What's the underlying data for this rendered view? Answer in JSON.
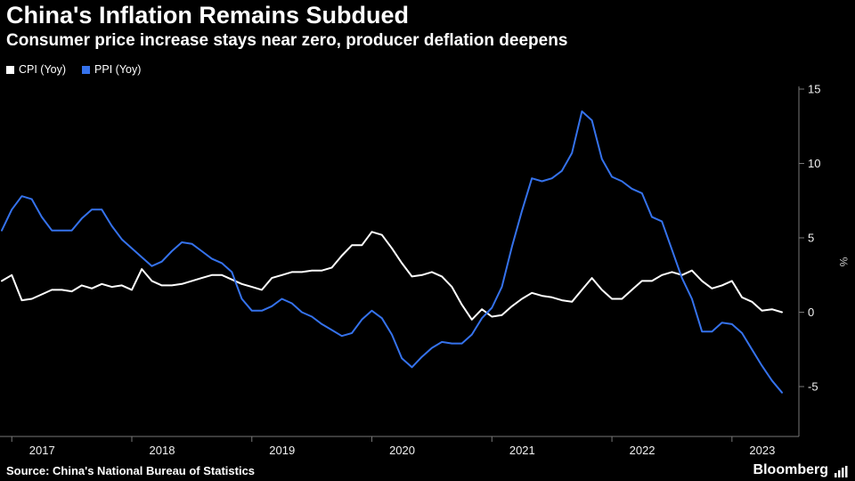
{
  "header": {
    "title": "China's Inflation Remains Subdued",
    "subtitle": "Consumer price increase stays near zero, producer deflation deepens"
  },
  "legend": [
    {
      "label": "CPI (Yoy)",
      "color": "#ffffff"
    },
    {
      "label": "PPI (Yoy)",
      "color": "#3572ec"
    }
  ],
  "footer": {
    "source": "Source: China's National Bureau of Statistics",
    "brand": "Bloomberg"
  },
  "colors": {
    "background": "#000000",
    "axis": "#787878",
    "tick_text": "#f2f2f2",
    "unit_text": "#c8c8c8",
    "cpi_line": "#ffffff",
    "ppi_line": "#3572ec"
  },
  "chart_data": {
    "type": "line",
    "title": "China's Inflation Remains Subdued",
    "subtitle": "Consumer price increase stays near zero, producer deflation deepens",
    "x_unit": "month",
    "x_start": "2016-12",
    "x_end": "2023-06",
    "ylabel": "%",
    "ylim": [
      -8,
      15.5
    ],
    "y_ticks": [
      15,
      10,
      5,
      0,
      -5
    ],
    "x_tick_years": [
      "2017",
      "2018",
      "2019",
      "2020",
      "2021",
      "2022",
      "2023"
    ],
    "grid": false,
    "legend_position": "top-left",
    "series": [
      {
        "name": "CPI (Yoy)",
        "color": "#ffffff",
        "values": [
          2.1,
          2.5,
          0.8,
          0.9,
          1.2,
          1.5,
          1.5,
          1.4,
          1.8,
          1.6,
          1.9,
          1.7,
          1.8,
          1.5,
          2.9,
          2.1,
          1.8,
          1.8,
          1.9,
          2.1,
          2.3,
          2.5,
          2.5,
          2.2,
          1.9,
          1.7,
          1.5,
          2.3,
          2.5,
          2.7,
          2.7,
          2.8,
          2.8,
          3.0,
          3.8,
          4.5,
          4.5,
          5.4,
          5.2,
          4.3,
          3.3,
          2.4,
          2.5,
          2.7,
          2.4,
          1.7,
          0.5,
          -0.5,
          0.2,
          -0.3,
          -0.2,
          0.4,
          0.9,
          1.3,
          1.1,
          1.0,
          0.8,
          0.7,
          1.5,
          2.3,
          1.5,
          0.9,
          0.9,
          1.5,
          2.1,
          2.1,
          2.5,
          2.7,
          2.5,
          2.8,
          2.1,
          1.6,
          1.8,
          2.1,
          1.0,
          0.7,
          0.1,
          0.2,
          0.0
        ]
      },
      {
        "name": "PPI (Yoy)",
        "color": "#3572ec",
        "values": [
          5.5,
          6.9,
          7.8,
          7.6,
          6.4,
          5.5,
          5.5,
          5.5,
          6.3,
          6.9,
          6.9,
          5.8,
          4.9,
          4.3,
          3.7,
          3.1,
          3.4,
          4.1,
          4.7,
          4.6,
          4.1,
          3.6,
          3.3,
          2.7,
          0.9,
          0.1,
          0.1,
          0.4,
          0.9,
          0.6,
          0.0,
          -0.3,
          -0.8,
          -1.2,
          -1.6,
          -1.4,
          -0.5,
          0.1,
          -0.4,
          -1.5,
          -3.1,
          -3.7,
          -3.0,
          -2.4,
          -2.0,
          -2.1,
          -2.1,
          -1.5,
          -0.4,
          0.3,
          1.7,
          4.4,
          6.8,
          9.0,
          8.8,
          9.0,
          9.5,
          10.7,
          13.5,
          12.9,
          10.3,
          9.1,
          8.8,
          8.3,
          8.0,
          6.4,
          6.1,
          4.2,
          2.3,
          0.9,
          -1.3,
          -1.3,
          -0.7,
          -0.8,
          -1.4,
          -2.5,
          -3.6,
          -4.6,
          -5.4
        ]
      }
    ]
  }
}
